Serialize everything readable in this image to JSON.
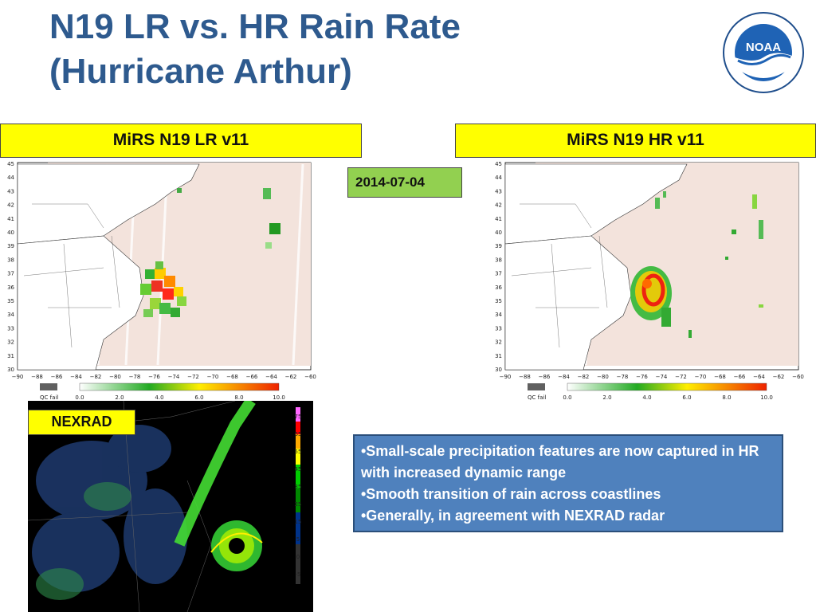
{
  "slide": {
    "title_line1": "N19 LR vs. HR Rain Rate",
    "title_line2": "(Hurricane Arthur)",
    "logo_text": "NOAA"
  },
  "panels": {
    "lr_label": "MiRS N19 LR v11",
    "hr_label": "MiRS N19 HR v11",
    "date": "2014-07-04",
    "nexrad_label": "NEXRAD"
  },
  "map_axes": {
    "lat_ticks": [
      "45",
      "44",
      "43",
      "42",
      "41",
      "40",
      "39",
      "38",
      "37",
      "36",
      "35",
      "34",
      "33",
      "32",
      "31",
      "30"
    ],
    "lon_ticks": [
      "−90",
      "−88",
      "−86",
      "−84",
      "−82",
      "−80",
      "−78",
      "−76",
      "−74",
      "−72",
      "−70",
      "−68",
      "−66",
      "−64",
      "−62",
      "−60"
    ],
    "colorbar_qc": "QC fail",
    "colorbar_ticks": [
      "0.0",
      "2.0",
      "4.0",
      "6.0",
      "8.0",
      "10.0"
    ]
  },
  "nexrad_scale": [
    "-5",
    "0",
    "5",
    "15",
    "25",
    "35",
    "45",
    "55",
    "65",
    "75"
  ],
  "bullets": [
    "•Small-scale precipitation features are now captured in HR with increased dynamic range",
    "•Smooth transition of rain across coastlines",
    "•Generally, in agreement with NEXRAD  radar"
  ],
  "colors": {
    "title": "#2e5a8e",
    "label_bg": "#ffff00",
    "date_bg": "#92d050",
    "bullet_bg": "#4f81bd"
  }
}
